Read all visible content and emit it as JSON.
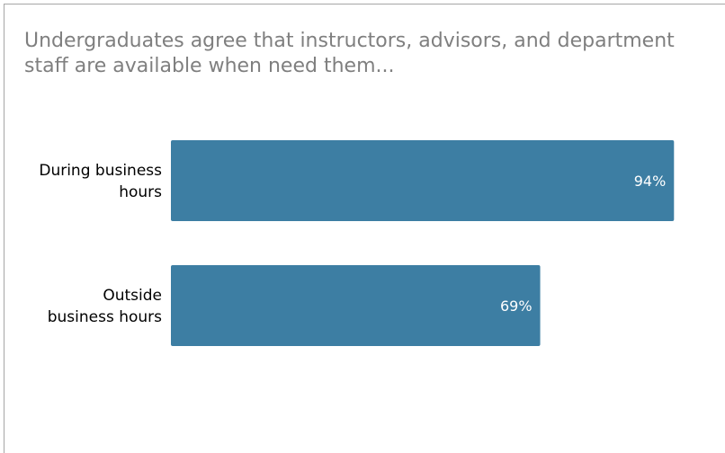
{
  "chart_data": {
    "type": "bar",
    "orientation": "horizontal",
    "title": "Undergraduates agree that instructors, advisors, and department staff are available when need them...",
    "categories": [
      [
        "During business",
        "hours"
      ],
      [
        "Outside",
        "business hours"
      ]
    ],
    "values": [
      94,
      69
    ],
    "value_labels": [
      "94%",
      "69%"
    ],
    "xlim": [
      0,
      100
    ],
    "bar_color": "#3d7ea3",
    "label_color": "#ffffff",
    "grid": false,
    "legend": "none"
  }
}
